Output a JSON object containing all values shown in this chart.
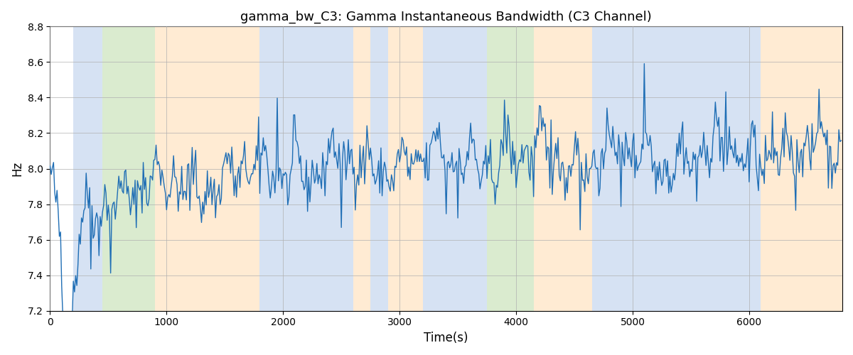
{
  "title": "gamma_bw_C3: Gamma Instantaneous Bandwidth (C3 Channel)",
  "xlabel": "Time(s)",
  "ylabel": "Hz",
  "ylim": [
    7.2,
    8.8
  ],
  "xlim": [
    0,
    6800
  ],
  "line_color": "#1f6eb5",
  "line_width": 1.0,
  "background_color": "#ffffff",
  "grid_color": "#b0b0b0",
  "title_fontsize": 13,
  "label_fontsize": 12,
  "seed": 42,
  "n_points": 680,
  "x_scale": 10,
  "bands": [
    {
      "xmin": 200,
      "xmax": 450,
      "color": "#aec6e8",
      "alpha": 0.5
    },
    {
      "xmin": 450,
      "xmax": 900,
      "color": "#b6d9a0",
      "alpha": 0.5
    },
    {
      "xmin": 900,
      "xmax": 1800,
      "color": "#ffd9a8",
      "alpha": 0.5
    },
    {
      "xmin": 1800,
      "xmax": 2600,
      "color": "#aec6e8",
      "alpha": 0.5
    },
    {
      "xmin": 2600,
      "xmax": 2750,
      "color": "#ffd9a8",
      "alpha": 0.5
    },
    {
      "xmin": 2750,
      "xmax": 2900,
      "color": "#aec6e8",
      "alpha": 0.5
    },
    {
      "xmin": 2900,
      "xmax": 3200,
      "color": "#ffd9a8",
      "alpha": 0.5
    },
    {
      "xmin": 3200,
      "xmax": 3750,
      "color": "#aec6e8",
      "alpha": 0.5
    },
    {
      "xmin": 3750,
      "xmax": 4150,
      "color": "#b6d9a0",
      "alpha": 0.5
    },
    {
      "xmin": 4150,
      "xmax": 4650,
      "color": "#ffd9a8",
      "alpha": 0.5
    },
    {
      "xmin": 4650,
      "xmax": 6100,
      "color": "#aec6e8",
      "alpha": 0.5
    },
    {
      "xmin": 6100,
      "xmax": 6800,
      "color": "#ffd9a8",
      "alpha": 0.5
    }
  ]
}
